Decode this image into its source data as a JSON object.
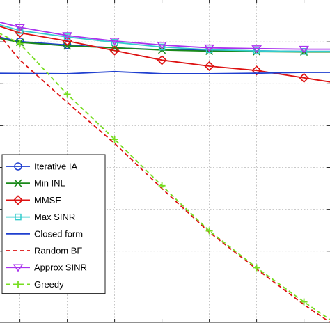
{
  "chart_data": {
    "type": "line",
    "x": [
      1,
      2,
      3,
      4,
      5,
      6,
      7
    ],
    "xlim": [
      0.55,
      7.55
    ],
    "ylim": [
      0,
      11.8
    ],
    "grid": true,
    "legend_placement": "bottom-left",
    "series": [
      {
        "name": "Iterative IA",
        "color": "#1f3fcf",
        "dash": "solid",
        "marker": "circle",
        "marker_x": [
          1,
          2
        ],
        "marker_y": [
          10.28,
          10.15
        ],
        "x": [
          0.55,
          1,
          2,
          3,
          4,
          5,
          6,
          7,
          7.55
        ],
        "y": [
          10.45,
          10.28,
          10.15,
          10.05,
          9.98,
          9.96,
          9.94,
          9.92,
          9.92
        ]
      },
      {
        "name": "Min INL",
        "color": "#1a8a1a",
        "dash": "solid",
        "marker": "x",
        "x": [
          0.55,
          1,
          2,
          3,
          4,
          5,
          6,
          7,
          7.55
        ],
        "y": [
          10.4,
          10.25,
          10.12,
          10.05,
          9.97,
          9.93,
          9.91,
          9.9,
          9.9
        ]
      },
      {
        "name": "MMSE",
        "color": "#dd1111",
        "dash": "solid",
        "marker": "diamond",
        "x": [
          0.55,
          1,
          2,
          3,
          4,
          5,
          6,
          7,
          7.55
        ],
        "y": [
          10.85,
          10.6,
          10.3,
          9.95,
          9.6,
          9.38,
          9.22,
          8.95,
          8.8
        ]
      },
      {
        "name": "Max SINR",
        "color": "#33cccc",
        "dash": "solid",
        "marker": "square",
        "x": [
          0.55,
          1,
          2,
          3,
          4,
          5,
          6,
          7,
          7.55
        ],
        "y": [
          10.9,
          10.68,
          10.45,
          10.25,
          10.08,
          9.98,
          9.94,
          9.92,
          9.92
        ]
      },
      {
        "name": "Closed form",
        "color": "#1f3fcf",
        "dash": "solid",
        "marker": "none",
        "x": [
          0.55,
          2,
          3,
          4,
          5,
          6,
          7,
          7.55
        ],
        "y": [
          9.12,
          9.1,
          9.18,
          9.1,
          9.1,
          9.12,
          9.15,
          9.15
        ]
      },
      {
        "name": "Random BF",
        "color": "#dd1111",
        "dash": "dashed",
        "marker": "none",
        "x": [
          0.55,
          1,
          2,
          3,
          4,
          5,
          6,
          7,
          7.55
        ],
        "y": [
          10.55,
          9.6,
          8.05,
          6.55,
          4.9,
          3.3,
          1.95,
          0.65,
          0.0
        ]
      },
      {
        "name": "Approx SINR",
        "color": "#aa33ee",
        "dash": "solid",
        "marker": "triangle-down",
        "x": [
          0.55,
          1,
          2,
          3,
          4,
          5,
          6,
          7,
          7.55
        ],
        "y": [
          11.0,
          10.8,
          10.5,
          10.3,
          10.15,
          10.05,
          10.02,
          10.0,
          10.0
        ]
      },
      {
        "name": "Greedy",
        "color": "#77dd22",
        "dash": "dashed",
        "marker": "plus",
        "x": [
          0.55,
          1,
          2,
          3,
          4,
          5,
          6,
          7,
          7.55
        ],
        "y": [
          10.6,
          10.2,
          8.35,
          6.7,
          5.0,
          3.35,
          2.0,
          0.75,
          0.1
        ]
      }
    ],
    "legend": [
      "Iterative IA",
      "Min INL",
      "MMSE",
      "Max SINR",
      "Closed form",
      "Random BF",
      "Approx SINR",
      "Greedy"
    ]
  }
}
